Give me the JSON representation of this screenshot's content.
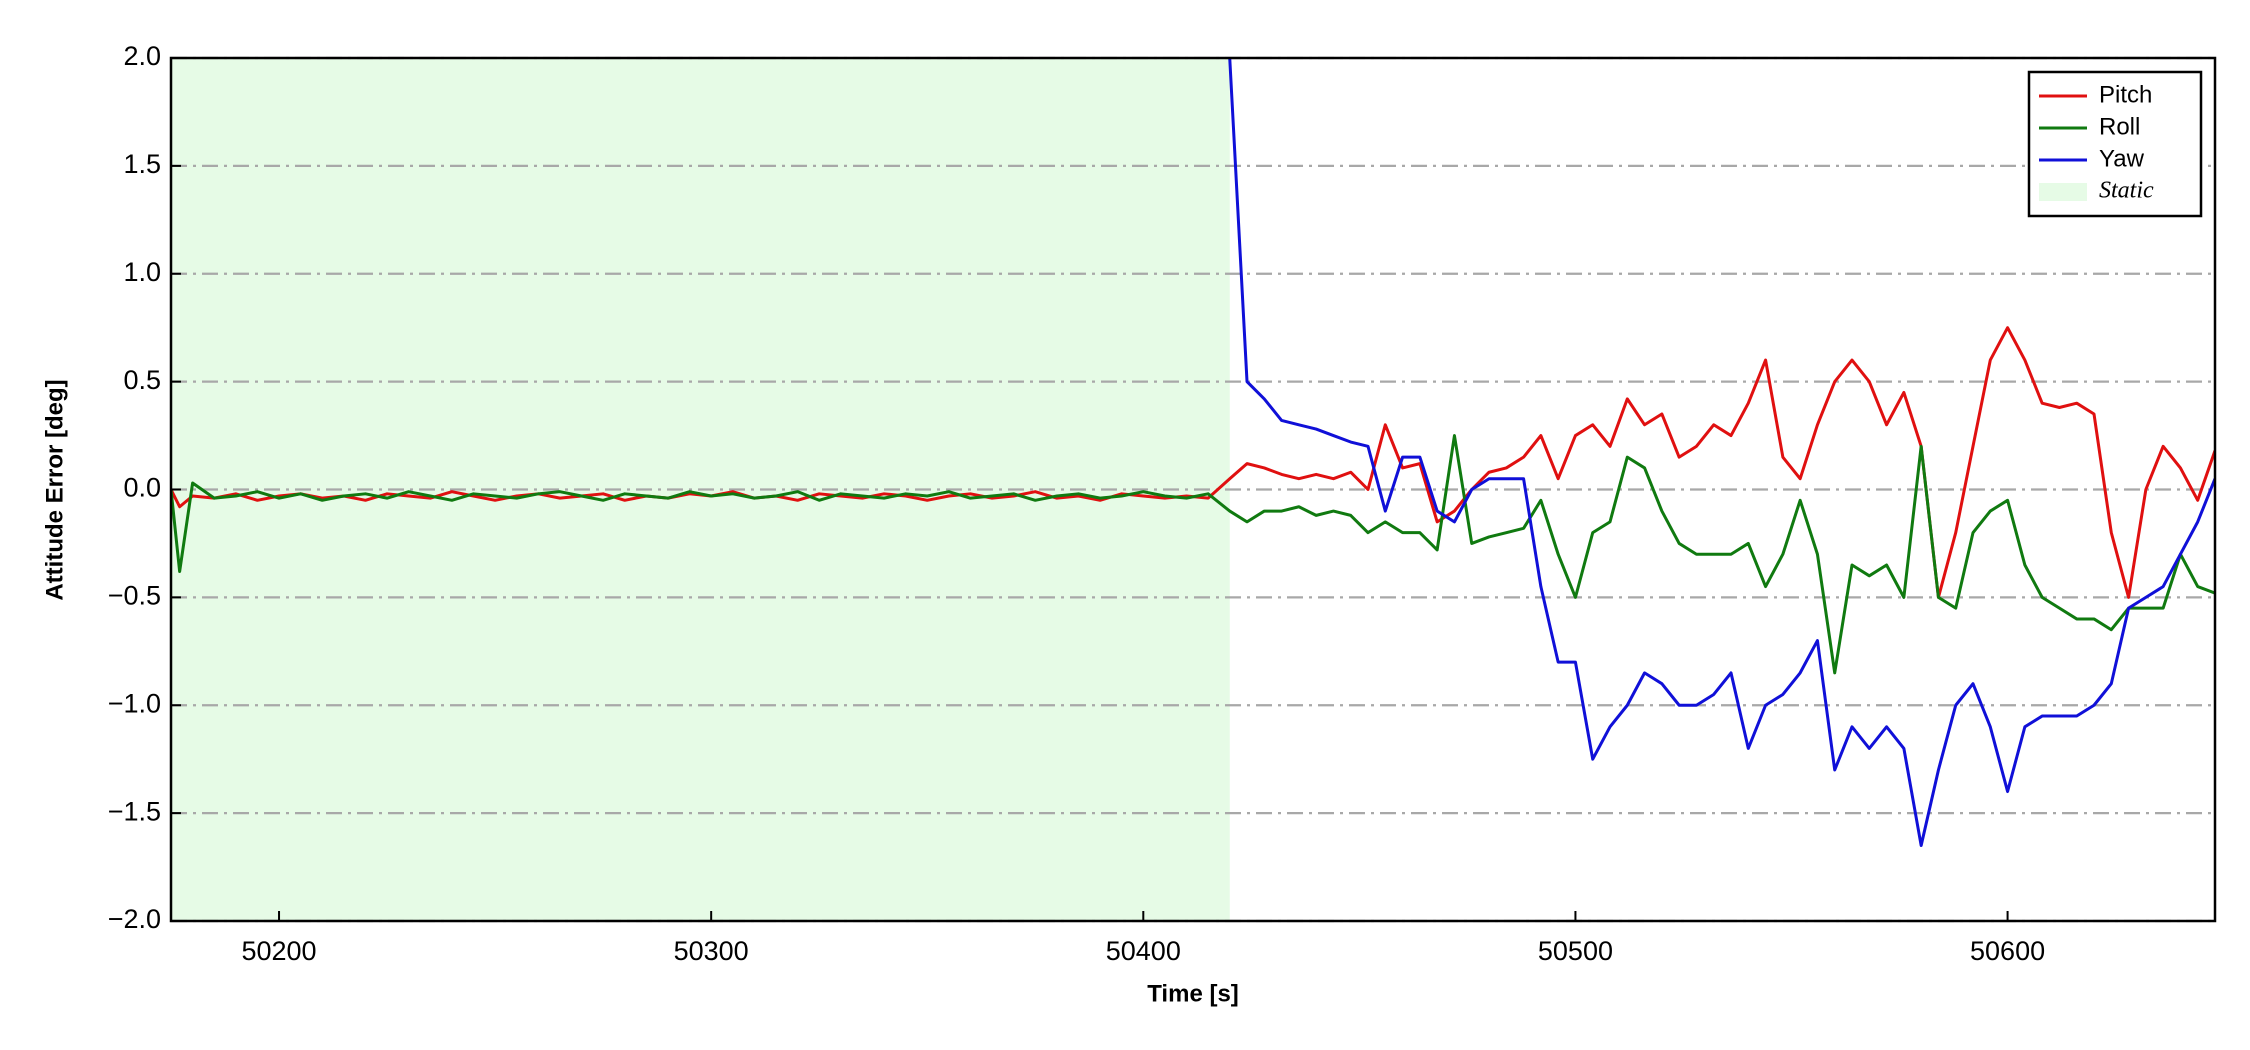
{
  "chart_data": {
    "type": "line",
    "x_label": "Time [s]",
    "y_label": "Attitude Error [deg]",
    "xlim": [
      50175,
      50648
    ],
    "ylim": [
      -2,
      2
    ],
    "xticks": [
      50200,
      50300,
      50400,
      50500,
      50600
    ],
    "yticks": [
      {
        "value": -2,
        "label": "−2.0"
      },
      {
        "value": -1.5,
        "label": "−1.5"
      },
      {
        "value": -1,
        "label": "−1.0"
      },
      {
        "value": -0.5,
        "label": "−0.5"
      },
      {
        "value": 0,
        "label": "0.0"
      },
      0.5,
      {
        "value": 1,
        "label": "1.0"
      },
      1.5,
      {
        "value": 2,
        "label": "2.0"
      }
    ],
    "grid": true,
    "legend": "upper right",
    "spans": [
      {
        "name": "Static",
        "color": "#e6fbe6",
        "x": [
          50175,
          50420
        ]
      }
    ],
    "x": [
      50175,
      50177,
      50180,
      50185,
      50190,
      50195,
      50200,
      50205,
      50210,
      50215,
      50220,
      50225,
      50230,
      50235,
      50240,
      50245,
      50250,
      50255,
      50260,
      50265,
      50270,
      50275,
      50280,
      50285,
      50290,
      50295,
      50300,
      50305,
      50310,
      50315,
      50320,
      50325,
      50330,
      50335,
      50340,
      50345,
      50350,
      50355,
      50360,
      50365,
      50370,
      50375,
      50380,
      50385,
      50390,
      50395,
      50400,
      50405,
      50410,
      50415,
      50420,
      50424,
      50428,
      50432,
      50436,
      50440,
      50444,
      50448,
      50452,
      50456,
      50460,
      50464,
      50468,
      50472,
      50476,
      50480,
      50484,
      50488,
      50492,
      50496,
      50500,
      50504,
      50508,
      50512,
      50516,
      50520,
      50524,
      50528,
      50532,
      50536,
      50540,
      50544,
      50548,
      50552,
      50556,
      50560,
      50564,
      50568,
      50572,
      50576,
      50580,
      50584,
      50588,
      50592,
      50596,
      50600,
      50604,
      50608,
      50612,
      50616,
      50620,
      50624,
      50628,
      50632,
      50636,
      50640,
      50644,
      50648
    ],
    "series": [
      {
        "name": "Pitch",
        "color": "#e01010",
        "values": [
          0,
          -0.08,
          -0.03,
          -0.04,
          -0.02,
          -0.05,
          -0.03,
          -0.02,
          -0.04,
          -0.03,
          -0.05,
          -0.02,
          -0.03,
          -0.04,
          -0.01,
          -0.03,
          -0.05,
          -0.03,
          -0.02,
          -0.04,
          -0.03,
          -0.02,
          -0.05,
          -0.03,
          -0.04,
          -0.02,
          -0.03,
          -0.01,
          -0.04,
          -0.03,
          -0.05,
          -0.02,
          -0.03,
          -0.04,
          -0.02,
          -0.03,
          -0.05,
          -0.03,
          -0.02,
          -0.04,
          -0.03,
          -0.01,
          -0.04,
          -0.03,
          -0.05,
          -0.02,
          -0.03,
          -0.04,
          -0.03,
          -0.04,
          0.05,
          0.12,
          0.1,
          0.07,
          0.05,
          0.07,
          0.05,
          0.08,
          0.0,
          0.3,
          0.1,
          0.12,
          -0.15,
          -0.1,
          0.0,
          0.08,
          0.1,
          0.15,
          0.25,
          0.05,
          0.25,
          0.3,
          0.2,
          0.42,
          0.3,
          0.35,
          0.15,
          0.2,
          0.3,
          0.25,
          0.4,
          0.6,
          0.15,
          0.05,
          0.3,
          0.5,
          0.6,
          0.5,
          0.3,
          0.45,
          0.2,
          -0.5,
          -0.2,
          0.2,
          0.6,
          0.75,
          0.6,
          0.4,
          0.38,
          0.4,
          0.35,
          -0.2,
          -0.5,
          0.0,
          0.2,
          0.1,
          -0.05,
          0.18
        ]
      },
      {
        "name": "Roll",
        "color": "#107a10",
        "values": [
          0,
          -0.38,
          0.03,
          -0.04,
          -0.03,
          -0.01,
          -0.04,
          -0.02,
          -0.05,
          -0.03,
          -0.02,
          -0.04,
          -0.01,
          -0.03,
          -0.05,
          -0.02,
          -0.03,
          -0.04,
          -0.02,
          -0.01,
          -0.03,
          -0.05,
          -0.02,
          -0.03,
          -0.04,
          -0.01,
          -0.03,
          -0.02,
          -0.04,
          -0.03,
          -0.01,
          -0.05,
          -0.02,
          -0.03,
          -0.04,
          -0.02,
          -0.03,
          -0.01,
          -0.04,
          -0.03,
          -0.02,
          -0.05,
          -0.03,
          -0.02,
          -0.04,
          -0.03,
          -0.01,
          -0.03,
          -0.04,
          -0.02,
          -0.1,
          -0.15,
          -0.1,
          -0.1,
          -0.08,
          -0.12,
          -0.1,
          -0.12,
          -0.2,
          -0.15,
          -0.2,
          -0.2,
          -0.28,
          0.25,
          -0.25,
          -0.22,
          -0.2,
          -0.18,
          -0.05,
          -0.3,
          -0.5,
          -0.2,
          -0.15,
          0.15,
          0.1,
          -0.1,
          -0.25,
          -0.3,
          -0.3,
          -0.3,
          -0.25,
          -0.45,
          -0.3,
          -0.05,
          -0.3,
          -0.85,
          -0.35,
          -0.4,
          -0.35,
          -0.5,
          0.2,
          -0.5,
          -0.55,
          -0.2,
          -0.1,
          -0.05,
          -0.35,
          -0.5,
          -0.55,
          -0.6,
          -0.6,
          -0.65,
          -0.55,
          -0.55,
          -0.55,
          -0.3,
          -0.45,
          -0.48
        ]
      },
      {
        "name": "Yaw",
        "color": "#1010d8",
        "values": [
          null,
          null,
          null,
          null,
          null,
          null,
          null,
          null,
          null,
          null,
          null,
          null,
          null,
          null,
          null,
          null,
          null,
          null,
          null,
          null,
          null,
          null,
          null,
          null,
          null,
          null,
          null,
          null,
          null,
          null,
          null,
          null,
          null,
          null,
          null,
          null,
          null,
          null,
          null,
          null,
          null,
          null,
          null,
          null,
          null,
          null,
          null,
          null,
          null,
          null,
          2.0,
          0.5,
          0.42,
          0.32,
          0.3,
          0.28,
          0.25,
          0.22,
          0.2,
          -0.1,
          0.15,
          0.15,
          -0.1,
          -0.15,
          0.0,
          0.05,
          0.05,
          0.05,
          -0.45,
          -0.8,
          -0.8,
          -1.25,
          -1.1,
          -1.0,
          -0.85,
          -0.9,
          -1.0,
          -1.0,
          -0.95,
          -0.85,
          -1.2,
          -1.0,
          -0.95,
          -0.85,
          -0.7,
          -1.3,
          -1.1,
          -1.2,
          -1.1,
          -1.2,
          -1.65,
          -1.3,
          -1.0,
          -0.9,
          -1.1,
          -1.4,
          -1.1,
          -1.05,
          -1.05,
          -1.05,
          -1.0,
          -0.9,
          -0.55,
          -0.5,
          -0.45,
          -0.3,
          -0.15,
          0.05
        ]
      }
    ]
  }
}
